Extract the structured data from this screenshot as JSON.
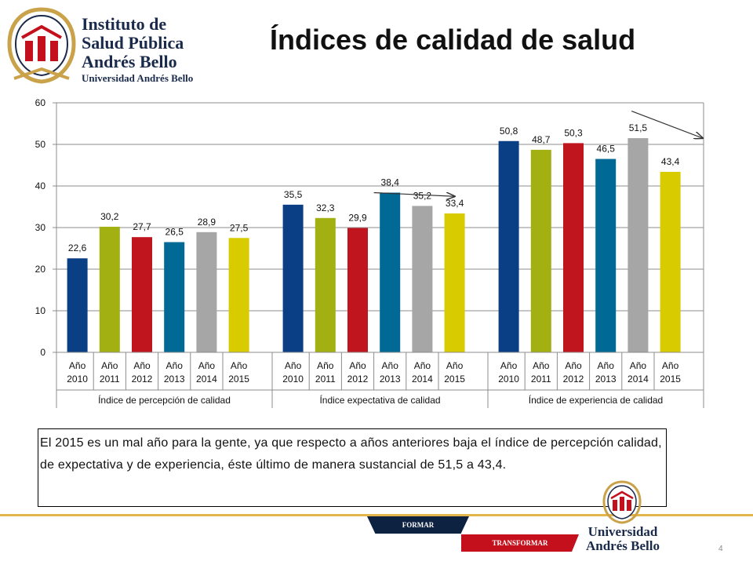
{
  "header": {
    "logo_lines": [
      "Instituto de",
      "Salud Pública",
      "Andrés Bello",
      "Universidad Andrés Bello"
    ],
    "title": "Índices de calidad de salud"
  },
  "chart_data": {
    "type": "bar",
    "groups": [
      "Índice de percepción de calidad",
      "Índice expectativa de calidad",
      "Índice de experiencia de calidad"
    ],
    "categories": [
      [
        "Año",
        "2010"
      ],
      [
        "Año",
        "2011"
      ],
      [
        "Año",
        "2012"
      ],
      [
        "Año",
        "2013"
      ],
      [
        "Año",
        "2014"
      ],
      [
        "Año",
        "2015"
      ]
    ],
    "values": [
      [
        22.6,
        30.2,
        27.7,
        26.5,
        28.9,
        27.5
      ],
      [
        35.5,
        32.3,
        29.9,
        38.4,
        35.2,
        33.4
      ],
      [
        50.8,
        48.7,
        50.3,
        46.5,
        51.5,
        43.4
      ]
    ],
    "data_labels": [
      [
        "22,6",
        "30,2",
        "27,7",
        "26,5",
        "28,9",
        "27,5"
      ],
      [
        "35,5",
        "32,3",
        "29,9",
        "38,4",
        "35,2",
        "33,4"
      ],
      [
        "50,8",
        "48,7",
        "50,3",
        "46,5",
        "51,5",
        "43,4"
      ]
    ],
    "colors": [
      "#0b3f85",
      "#a3b011",
      "#c0141e",
      "#006996",
      "#a6a6a6",
      "#d8cc00"
    ],
    "ylim": [
      0,
      60
    ],
    "yticks": [
      0,
      10,
      20,
      30,
      40,
      50,
      60
    ],
    "grid": true,
    "legend": "none",
    "trend_arrows": [
      {
        "from": [
          3,
          38.4
        ],
        "to": [
          5.5,
          37.5
        ],
        "group": 1
      },
      {
        "from": [
          4.3,
          58
        ],
        "to": [
          6.5,
          51.5
        ],
        "group": 2
      }
    ]
  },
  "note": {
    "text": "El 2015 es un mal año para la gente, ya que respecto a años anteriores baja el índice de percepción calidad, de expectativa y de experiencia, éste último de manera sustancial de 51,5 a 43,4."
  },
  "footer": {
    "band_top": "FORMAR",
    "band_bottom": "TRANSFORMAR",
    "logo_line1": "Universidad",
    "logo_line2": "Andrés Bello",
    "page_number": "4"
  }
}
